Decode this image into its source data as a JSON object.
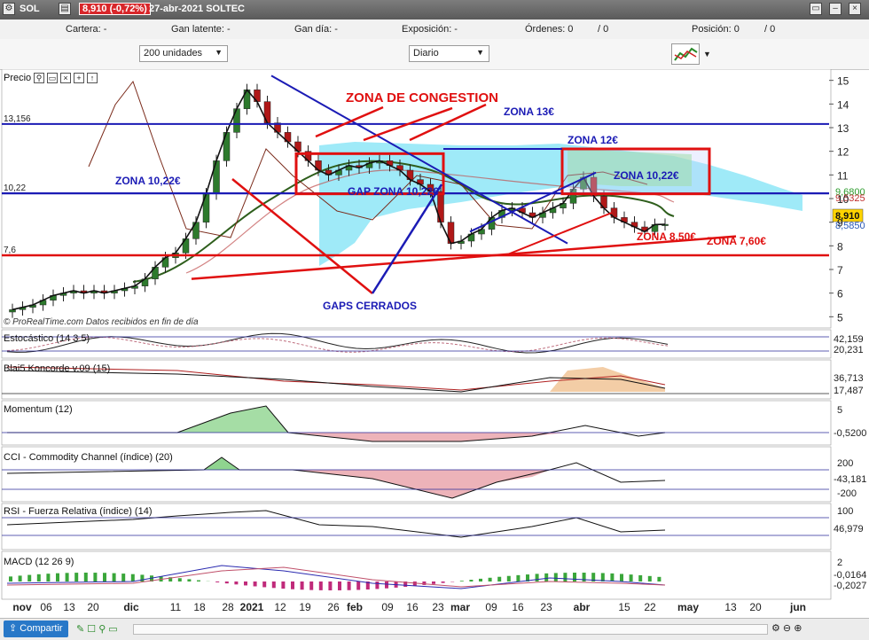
{
  "header": {
    "symbol": "SOL",
    "price_change": "8,910 (-0,72%)",
    "date_name": "27-abr-2021  SOLTEC"
  },
  "info": {
    "cartera": "Cartera: -",
    "gan_latente": "Gan latente: -",
    "gan_dia": "Gan día: -",
    "exposicion": "Exposición: -",
    "ordenes": "Órdenes: 0",
    "ordenes2": "/ 0",
    "posicion": "Posición: 0",
    "posicion2": "/ 0"
  },
  "controls": {
    "units": "200 unidades",
    "period": "Diario"
  },
  "colors": {
    "up": "#2d7a2d",
    "down": "#b01818",
    "kumo": "#7fe3f5",
    "zone_red": "#e01010",
    "zone_blue": "#1b1bb5"
  },
  "chart_data": [
    {
      "type": "candlestick",
      "title": "Precio",
      "ylim": [
        4.6,
        15.4
      ],
      "y_ticks": [
        "15",
        "14",
        "13",
        "12",
        "11",
        "10",
        "9",
        "8",
        "7",
        "6",
        "5"
      ],
      "x_ticks": [
        "nov",
        "06",
        "13",
        "20",
        "dic",
        "11",
        "18",
        "28",
        "2021",
        "12",
        "19",
        "26",
        "feb",
        "09",
        "16",
        "23",
        "mar",
        "09",
        "16",
        "23",
        "abr",
        "15",
        "22",
        "may",
        "13",
        "20",
        "jun"
      ],
      "last_price": "8,910",
      "price_tags": [
        "9,6800",
        "9,5325",
        "8,5850"
      ],
      "left_levels": [
        "13,156",
        "10,22",
        "7,6"
      ],
      "source_note": "© ProRealTime.com  Datos recibidos en fin de día",
      "annotations": {
        "zona_congestion": "ZONA DE CONGESTION",
        "zona13": "ZONA 13€",
        "zona12": "ZONA 12€",
        "zona1022_left": "ZONA 10,22€",
        "zona1022_right": "ZONA 10,22€",
        "gap_zona": "GAP ZONA 10,22€",
        "gaps_cerrados": "GAPS CERRADOS",
        "zona850": "ZONA 8,50€",
        "zona760": "ZONA 7,60€"
      },
      "closes": [
        5.3,
        5.4,
        5.5,
        5.7,
        5.9,
        6.0,
        6.1,
        6.0,
        6.1,
        6.0,
        6.1,
        6.2,
        6.3,
        6.6,
        7.1,
        7.5,
        7.7,
        8.3,
        9.0,
        10.2,
        11.6,
        12.8,
        13.8,
        14.6,
        14.1,
        13.2,
        12.8,
        12.4,
        12.0,
        11.6,
        11.2,
        11.0,
        11.2,
        11.4,
        11.3,
        11.5,
        11.6,
        11.4,
        11.2,
        10.8,
        10.6,
        10.3,
        9.0,
        8.1,
        8.2,
        8.5,
        8.7,
        9.2,
        9.5,
        9.6,
        9.4,
        9.2,
        9.4,
        9.6,
        9.8,
        10.4,
        10.9,
        10.1,
        9.6,
        9.2,
        9.0,
        8.8,
        8.6,
        8.9,
        8.91
      ]
    },
    {
      "type": "line",
      "title": "Estocástico (14 3 5)",
      "values": [
        "42,159",
        "20,231"
      ]
    },
    {
      "type": "area",
      "title": "Blai5 Koncorde v.09 (15)",
      "values": [
        "36,713",
        "17,487"
      ]
    },
    {
      "type": "area",
      "title": "Momentum (12)",
      "values": [
        "-0,5200"
      ],
      "y_ticks": [
        "5"
      ]
    },
    {
      "type": "area",
      "title": "CCI - Commodity Channel (índice) (20)",
      "values": [
        "-43,181"
      ],
      "y_ticks": [
        "200",
        "-200"
      ]
    },
    {
      "type": "line",
      "title": "RSI - Fuerza Relativa (índice) (14)",
      "values": [
        "46,979"
      ],
      "y_ticks": [
        "100"
      ]
    },
    {
      "type": "bar",
      "title": "MACD (12 26 9)",
      "values": [
        "-0,0164",
        "-0,2027"
      ],
      "y_ticks": [
        "2"
      ]
    }
  ],
  "footer": {
    "share": "Compartir"
  }
}
